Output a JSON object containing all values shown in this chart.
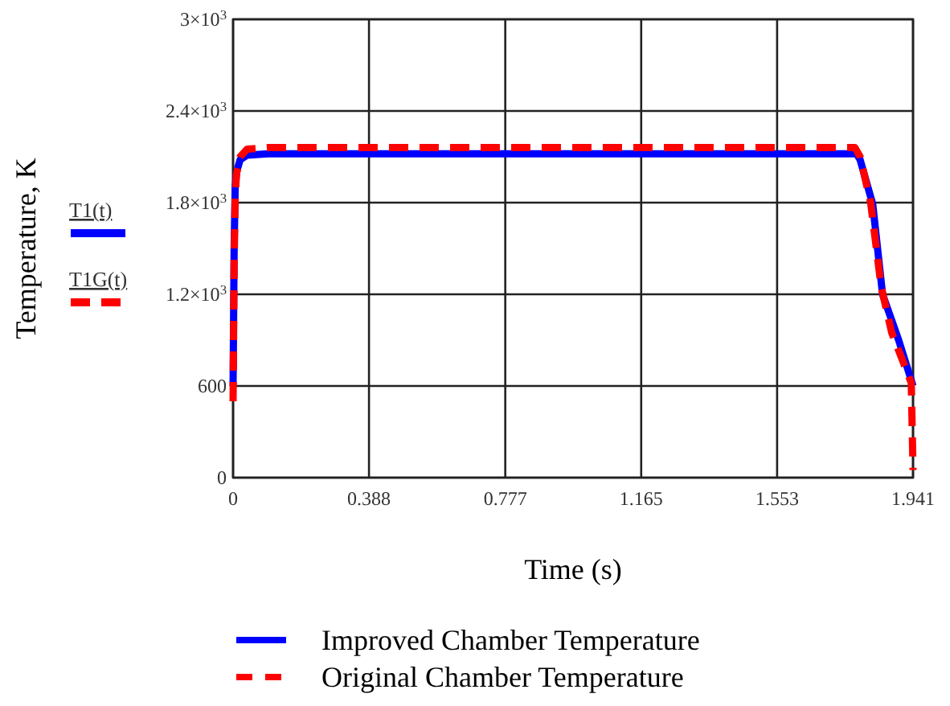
{
  "chart_data": {
    "type": "line",
    "xlabel": "Time (s)",
    "ylabel": "Temperature, K",
    "xlim": [
      0,
      1.941
    ],
    "ylim": [
      0,
      3000
    ],
    "xticks": [
      0,
      0.388,
      0.777,
      1.165,
      1.553,
      1.941
    ],
    "yticks": [
      0,
      600,
      {
        "value": 1200,
        "label": "1.2×10$^{3}$"
      },
      {
        "value": 1800,
        "label": "1.8×10$^{3}$"
      },
      {
        "value": 2400,
        "label": "2.4×10$^{3}$"
      },
      {
        "value": 3000,
        "label": "3×10$^{3}$"
      }
    ],
    "grid": true,
    "legend": "bottom",
    "annotations": [
      "T1(t)",
      "T1G(t)"
    ],
    "series": [
      {
        "name": "Improved Chamber Temperature",
        "color": "#0000ff",
        "line_style": "solid",
        "x": [
          0,
          0.003,
          0.006,
          0.01,
          0.02,
          0.04,
          0.1,
          0.5,
          1.0,
          1.5,
          1.78,
          1.79,
          1.826,
          1.854,
          1.9,
          1.941
        ],
        "values": [
          600,
          1500,
          1900,
          2000,
          2080,
          2110,
          2120,
          2120,
          2120,
          2120,
          2120,
          2080,
          1790,
          1200,
          900,
          600
        ]
      },
      {
        "name": "Original Chamber Temperature",
        "color": "#ff0000",
        "line_style": "dashed",
        "x": [
          0,
          0.003,
          0.006,
          0.01,
          0.02,
          0.04,
          0.1,
          0.5,
          1.0,
          1.5,
          1.775,
          1.79,
          1.82,
          1.85,
          1.88,
          1.936,
          1.941
        ],
        "values": [
          500,
          1400,
          1850,
          1990,
          2100,
          2150,
          2160,
          2160,
          2160,
          2160,
          2160,
          2100,
          1800,
          1250,
          950,
          620,
          50
        ]
      }
    ]
  }
}
